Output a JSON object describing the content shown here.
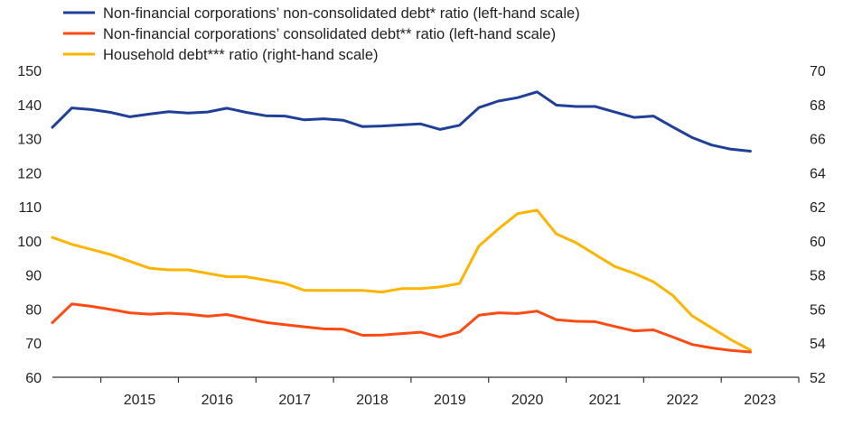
{
  "chart_data": {
    "type": "line",
    "x_labels": [
      "2015",
      "2016",
      "2017",
      "2018",
      "2019",
      "2020",
      "2021",
      "2022",
      "2023"
    ],
    "x_range": [
      2014.375,
      2024.0
    ],
    "y_left": {
      "ticks": [
        "60",
        "70",
        "80",
        "90",
        "100",
        "110",
        "120",
        "130",
        "140",
        "150"
      ],
      "range": [
        60,
        150
      ]
    },
    "y_right": {
      "ticks": [
        "52",
        "54",
        "56",
        "58",
        "60",
        "62",
        "64",
        "66",
        "68",
        "70"
      ],
      "range": [
        52,
        70
      ]
    },
    "grid": false,
    "legend_position": "top-left",
    "series": [
      {
        "name": "Non-financial corporations’ non-consolidated debt* ratio (left-hand scale)",
        "axis": "left",
        "color": "#1f3f98",
        "x": [
          2014.375,
          2014.625,
          2014.875,
          2015.125,
          2015.375,
          2015.625,
          2015.875,
          2016.125,
          2016.375,
          2016.625,
          2016.875,
          2017.125,
          2017.375,
          2017.625,
          2017.875,
          2018.125,
          2018.375,
          2018.625,
          2018.875,
          2019.125,
          2019.375,
          2019.625,
          2019.875,
          2020.125,
          2020.375,
          2020.625,
          2020.875,
          2021.125,
          2021.375,
          2021.625,
          2021.875,
          2022.125,
          2022.375,
          2022.625,
          2022.875,
          2023.125,
          2023.375
        ],
        "values": [
          133.3,
          139.0,
          138.5,
          137.7,
          136.4,
          137.2,
          137.9,
          137.5,
          137.8,
          138.9,
          137.7,
          136.7,
          136.6,
          135.5,
          135.8,
          135.4,
          133.5,
          133.7,
          134.0,
          134.3,
          132.7,
          133.9,
          139.1,
          141.0,
          142.0,
          143.7,
          139.8,
          139.4,
          139.4,
          137.8,
          136.2,
          136.6,
          133.4,
          130.3,
          128.1,
          126.9,
          126.3
        ]
      },
      {
        "name": "Non-financial corporations’ consolidated debt** ratio (left-hand scale)",
        "axis": "left",
        "color": "#ff4b12",
        "x": [
          2014.375,
          2014.625,
          2014.875,
          2015.125,
          2015.375,
          2015.625,
          2015.875,
          2016.125,
          2016.375,
          2016.625,
          2016.875,
          2017.125,
          2017.375,
          2017.625,
          2017.875,
          2018.125,
          2018.375,
          2018.625,
          2018.875,
          2019.125,
          2019.375,
          2019.625,
          2019.875,
          2020.125,
          2020.375,
          2020.625,
          2020.875,
          2021.125,
          2021.375,
          2021.625,
          2021.875,
          2022.125,
          2022.375,
          2022.625,
          2022.875,
          2023.125,
          2023.375
        ],
        "values": [
          76.0,
          81.5,
          80.8,
          79.9,
          78.9,
          78.5,
          78.8,
          78.5,
          77.9,
          78.4,
          77.2,
          76.1,
          75.4,
          74.8,
          74.2,
          74.1,
          72.3,
          72.4,
          72.8,
          73.2,
          71.8,
          73.3,
          78.2,
          78.9,
          78.7,
          79.4,
          76.9,
          76.4,
          76.3,
          74.9,
          73.6,
          73.9,
          71.8,
          69.6,
          68.6,
          67.9,
          67.4
        ]
      },
      {
        "name": "Household debt*** ratio (right-hand scale)",
        "axis": "right",
        "color": "#ffb400",
        "x": [
          2014.375,
          2014.625,
          2014.875,
          2015.125,
          2015.375,
          2015.625,
          2015.875,
          2016.125,
          2016.375,
          2016.625,
          2016.875,
          2017.125,
          2017.375,
          2017.625,
          2017.875,
          2018.125,
          2018.375,
          2018.625,
          2018.875,
          2019.125,
          2019.375,
          2019.625,
          2019.875,
          2020.125,
          2020.375,
          2020.625,
          2020.875,
          2021.125,
          2021.375,
          2021.625,
          2021.875,
          2022.125,
          2022.375,
          2022.625,
          2022.875,
          2023.125,
          2023.375
        ],
        "values": [
          60.2,
          59.8,
          59.5,
          59.2,
          58.8,
          58.4,
          58.3,
          58.3,
          58.1,
          57.9,
          57.9,
          57.7,
          57.5,
          57.1,
          57.1,
          57.1,
          57.1,
          57.0,
          57.2,
          57.2,
          57.3,
          57.5,
          59.7,
          60.7,
          61.6,
          61.8,
          60.4,
          59.9,
          59.2,
          58.5,
          58.1,
          57.6,
          56.8,
          55.6,
          54.9,
          54.2,
          53.6
        ]
      }
    ]
  }
}
